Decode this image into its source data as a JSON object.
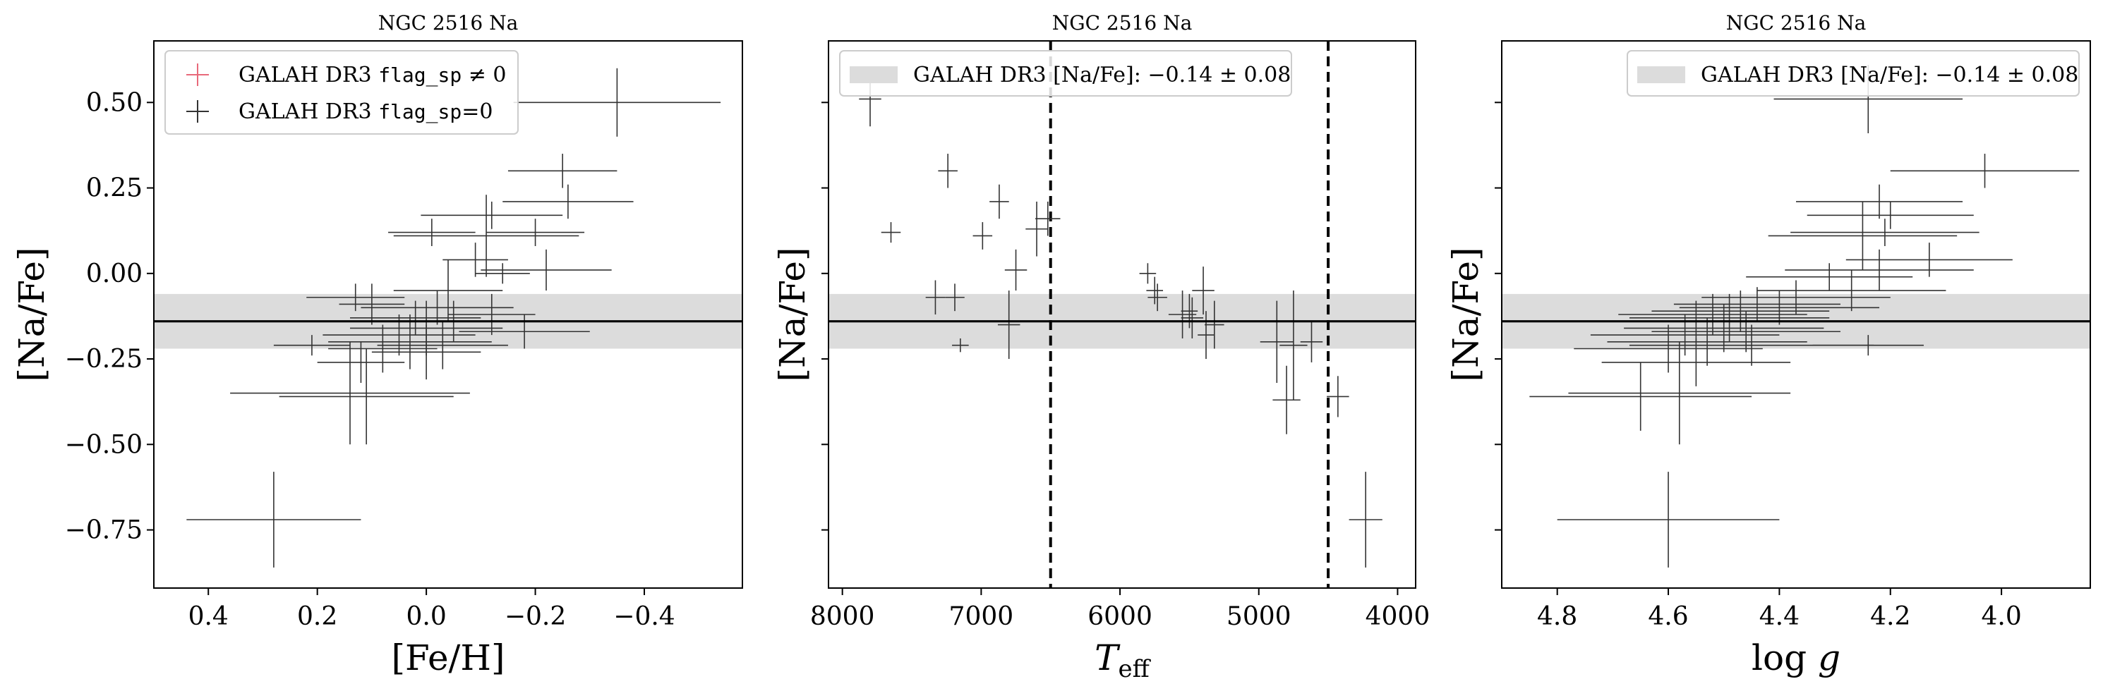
{
  "chart_data": [
    {
      "type": "scatter",
      "title": "NGC 2516 Na",
      "xlabel": "[Fe/H]",
      "ylabel": "[Na/Fe]",
      "xlim": [
        0.5,
        -0.58
      ],
      "ylim": [
        -0.92,
        0.68
      ],
      "xticks": [
        0.4,
        0.2,
        0.0,
        -0.2,
        -0.4
      ],
      "xtick_labels": [
        "0.4",
        "0.2",
        "0.0",
        "−0.2",
        "−0.4"
      ],
      "yticks": [
        0.5,
        0.25,
        0.0,
        -0.25,
        -0.5,
        -0.75
      ],
      "ytick_labels": [
        "0.50",
        "0.25",
        "0.00",
        "−0.25",
        "−0.50",
        "−0.75"
      ],
      "show_ytick_labels": true,
      "band": {
        "center": -0.14,
        "half_width": 0.08,
        "color": "#dcdcdc"
      },
      "hline": -0.14,
      "vlines": [],
      "legend": {
        "placement": "top-left",
        "entries": [
          {
            "label": "GALAH DR3",
            "code": "flag_sp",
            "suffix": "≠ 0",
            "color": "#e8697a"
          },
          {
            "label": "GALAH DR3",
            "code": "flag_sp",
            "suffix": "=0",
            "color": "#333333"
          }
        ]
      },
      "series": [
        {
          "color": "#333333",
          "points": [
            {
              "x": -0.35,
              "y": 0.5,
              "xerr": 0.19,
              "yerr": 0.1
            },
            {
              "x": -0.25,
              "y": 0.3,
              "xerr": 0.1,
              "yerr": 0.05
            },
            {
              "x": -0.26,
              "y": 0.21,
              "xerr": 0.12,
              "yerr": 0.05
            },
            {
              "x": -0.12,
              "y": 0.17,
              "xerr": 0.13,
              "yerr": 0.04
            },
            {
              "x": -0.2,
              "y": 0.12,
              "xerr": 0.09,
              "yerr": 0.04
            },
            {
              "x": -0.11,
              "y": 0.11,
              "xerr": 0.17,
              "yerr": 0.12
            },
            {
              "x": -0.01,
              "y": 0.12,
              "xerr": 0.08,
              "yerr": 0.04
            },
            {
              "x": -0.09,
              "y": 0.04,
              "xerr": 0.06,
              "yerr": 0.05
            },
            {
              "x": -0.22,
              "y": 0.01,
              "xerr": 0.12,
              "yerr": 0.06
            },
            {
              "x": -0.14,
              "y": 0.0,
              "xerr": 0.05,
              "yerr": 0.03
            },
            {
              "x": -0.04,
              "y": -0.05,
              "xerr": 0.1,
              "yerr": 0.09
            },
            {
              "x": 0.13,
              "y": -0.07,
              "xerr": 0.09,
              "yerr": 0.04
            },
            {
              "x": 0.1,
              "y": -0.09,
              "xerr": 0.06,
              "yerr": 0.06
            },
            {
              "x": -0.02,
              "y": -0.1,
              "xerr": 0.14,
              "yerr": 0.05
            },
            {
              "x": -0.12,
              "y": -0.12,
              "xerr": 0.08,
              "yerr": 0.06
            },
            {
              "x": 0.02,
              "y": -0.13,
              "xerr": 0.12,
              "yerr": 0.05
            },
            {
              "x": -0.05,
              "y": -0.14,
              "xerr": 0.17,
              "yerr": 0.06
            },
            {
              "x": 0.0,
              "y": -0.16,
              "xerr": 0.14,
              "yerr": 0.08
            },
            {
              "x": -0.18,
              "y": -0.17,
              "xerr": 0.12,
              "yerr": 0.05
            },
            {
              "x": 0.05,
              "y": -0.18,
              "xerr": 0.14,
              "yerr": 0.06
            },
            {
              "x": 0.03,
              "y": -0.2,
              "xerr": 0.15,
              "yerr": 0.08
            },
            {
              "x": -0.03,
              "y": -0.21,
              "xerr": 0.12,
              "yerr": 0.07
            },
            {
              "x": 0.21,
              "y": -0.21,
              "xerr": 0.07,
              "yerr": 0.03
            },
            {
              "x": 0.08,
              "y": -0.22,
              "xerr": 0.1,
              "yerr": 0.07
            },
            {
              "x": 0.0,
              "y": -0.23,
              "xerr": 0.1,
              "yerr": 0.08
            },
            {
              "x": 0.12,
              "y": -0.26,
              "xerr": 0.08,
              "yerr": 0.06
            },
            {
              "x": 0.11,
              "y": -0.36,
              "xerr": 0.16,
              "yerr": 0.14
            },
            {
              "x": 0.14,
              "y": -0.35,
              "xerr": 0.22,
              "yerr": 0.15
            },
            {
              "x": 0.28,
              "y": -0.72,
              "xerr": 0.16,
              "yerr": 0.14
            }
          ]
        }
      ]
    },
    {
      "type": "scatter",
      "title": "NGC 2516 Na",
      "xlabel": "T_eff",
      "ylabel": "[Na/Fe]",
      "xlim": [
        8100,
        3870
      ],
      "ylim": [
        -0.92,
        0.68
      ],
      "xticks": [
        8000,
        7000,
        6000,
        5000,
        4000
      ],
      "xtick_labels": [
        "8000",
        "7000",
        "6000",
        "5000",
        "4000"
      ],
      "yticks": [
        0.5,
        0.25,
        0.0,
        -0.25,
        -0.5,
        -0.75
      ],
      "ytick_labels": [
        "0.50",
        "0.25",
        "0.00",
        "−0.25",
        "−0.50",
        "−0.75"
      ],
      "show_ytick_labels": false,
      "band": {
        "center": -0.14,
        "half_width": 0.08,
        "color": "#dcdcdc"
      },
      "hline": -0.14,
      "vlines": [
        6500,
        4500
      ],
      "legend": {
        "placement": "top-left",
        "entries": [
          {
            "label": "GALAH DR3 [Na/Fe]:",
            "value": "−0.14 ± 0.08",
            "color": "#dcdcdc"
          }
        ]
      },
      "series": [
        {
          "color": "#333333",
          "points": [
            {
              "x": 7800,
              "y": 0.51,
              "xerr": 80,
              "yerr": 0.08
            },
            {
              "x": 7240,
              "y": 0.3,
              "xerr": 70,
              "yerr": 0.05
            },
            {
              "x": 6870,
              "y": 0.21,
              "xerr": 70,
              "yerr": 0.05
            },
            {
              "x": 7650,
              "y": 0.12,
              "xerr": 70,
              "yerr": 0.03
            },
            {
              "x": 6990,
              "y": 0.11,
              "xerr": 70,
              "yerr": 0.04
            },
            {
              "x": 6600,
              "y": 0.13,
              "xerr": 80,
              "yerr": 0.08
            },
            {
              "x": 6520,
              "y": 0.16,
              "xerr": 90,
              "yerr": 0.05
            },
            {
              "x": 6750,
              "y": 0.01,
              "xerr": 80,
              "yerr": 0.06
            },
            {
              "x": 7330,
              "y": -0.07,
              "xerr": 70,
              "yerr": 0.05
            },
            {
              "x": 7190,
              "y": -0.07,
              "xerr": 70,
              "yerr": 0.04
            },
            {
              "x": 6800,
              "y": -0.15,
              "xerr": 80,
              "yerr": 0.1
            },
            {
              "x": 7150,
              "y": -0.21,
              "xerr": 60,
              "yerr": 0.02
            },
            {
              "x": 5800,
              "y": 0.0,
              "xerr": 60,
              "yerr": 0.03
            },
            {
              "x": 5750,
              "y": -0.05,
              "xerr": 60,
              "yerr": 0.04
            },
            {
              "x": 5730,
              "y": -0.07,
              "xerr": 70,
              "yerr": 0.04
            },
            {
              "x": 5550,
              "y": -0.12,
              "xerr": 100,
              "yerr": 0.07
            },
            {
              "x": 5480,
              "y": -0.13,
              "xerr": 80,
              "yerr": 0.06
            },
            {
              "x": 5400,
              "y": -0.05,
              "xerr": 80,
              "yerr": 0.07
            },
            {
              "x": 5380,
              "y": -0.18,
              "xerr": 60,
              "yerr": 0.07
            },
            {
              "x": 5320,
              "y": -0.15,
              "xerr": 70,
              "yerr": 0.07
            },
            {
              "x": 5500,
              "y": -0.11,
              "xerr": 60,
              "yerr": 0.05
            },
            {
              "x": 4870,
              "y": -0.2,
              "xerr": 120,
              "yerr": 0.12
            },
            {
              "x": 4750,
              "y": -0.21,
              "xerr": 100,
              "yerr": 0.16
            },
            {
              "x": 4620,
              "y": -0.2,
              "xerr": 80,
              "yerr": 0.06
            },
            {
              "x": 4800,
              "y": -0.37,
              "xerr": 100,
              "yerr": 0.1
            },
            {
              "x": 4430,
              "y": -0.36,
              "xerr": 80,
              "yerr": 0.06
            },
            {
              "x": 4230,
              "y": -0.72,
              "xerr": 120,
              "yerr": 0.14
            }
          ]
        }
      ]
    },
    {
      "type": "scatter",
      "title": "NGC 2516 Na",
      "xlabel": "log g",
      "ylabel": "[Na/Fe]",
      "xlim": [
        4.9,
        3.84
      ],
      "ylim": [
        -0.92,
        0.68
      ],
      "xticks": [
        4.8,
        4.6,
        4.4,
        4.2,
        4.0
      ],
      "xtick_labels": [
        "4.8",
        "4.6",
        "4.4",
        "4.2",
        "4.0"
      ],
      "yticks": [
        0.5,
        0.25,
        0.0,
        -0.25,
        -0.5,
        -0.75
      ],
      "ytick_labels": [
        "0.50",
        "0.25",
        "0.00",
        "−0.25",
        "−0.50",
        "−0.75"
      ],
      "show_ytick_labels": false,
      "band": {
        "center": -0.14,
        "half_width": 0.08,
        "color": "#dcdcdc"
      },
      "hline": -0.14,
      "vlines": [],
      "legend": {
        "placement": "top-right",
        "entries": [
          {
            "label": "GALAH DR3 [Na/Fe]:",
            "value": "−0.14 ± 0.08",
            "color": "#dcdcdc"
          }
        ]
      },
      "series": [
        {
          "color": "#333333",
          "points": [
            {
              "x": 4.24,
              "y": 0.51,
              "xerr": 0.17,
              "yerr": 0.1
            },
            {
              "x": 4.03,
              "y": 0.3,
              "xerr": 0.17,
              "yerr": 0.05
            },
            {
              "x": 4.22,
              "y": 0.21,
              "xerr": 0.15,
              "yerr": 0.05
            },
            {
              "x": 4.2,
              "y": 0.17,
              "xerr": 0.15,
              "yerr": 0.04
            },
            {
              "x": 4.21,
              "y": 0.12,
              "xerr": 0.17,
              "yerr": 0.04
            },
            {
              "x": 4.25,
              "y": 0.11,
              "xerr": 0.17,
              "yerr": 0.1
            },
            {
              "x": 4.13,
              "y": 0.04,
              "xerr": 0.15,
              "yerr": 0.05
            },
            {
              "x": 4.22,
              "y": 0.01,
              "xerr": 0.17,
              "yerr": 0.06
            },
            {
              "x": 4.31,
              "y": -0.01,
              "xerr": 0.15,
              "yerr": 0.04
            },
            {
              "x": 4.27,
              "y": -0.05,
              "xerr": 0.17,
              "yerr": 0.06
            },
            {
              "x": 4.37,
              "y": -0.07,
              "xerr": 0.17,
              "yerr": 0.05
            },
            {
              "x": 4.44,
              "y": -0.09,
              "xerr": 0.15,
              "yerr": 0.05
            },
            {
              "x": 4.4,
              "y": -0.1,
              "xerr": 0.18,
              "yerr": 0.05
            },
            {
              "x": 4.47,
              "y": -0.11,
              "xerr": 0.16,
              "yerr": 0.06
            },
            {
              "x": 4.52,
              "y": -0.12,
              "xerr": 0.17,
              "yerr": 0.06
            },
            {
              "x": 4.49,
              "y": -0.13,
              "xerr": 0.18,
              "yerr": 0.07
            },
            {
              "x": 4.55,
              "y": -0.14,
              "xerr": 0.17,
              "yerr": 0.06
            },
            {
              "x": 4.5,
              "y": -0.16,
              "xerr": 0.18,
              "yerr": 0.07
            },
            {
              "x": 4.46,
              "y": -0.17,
              "xerr": 0.17,
              "yerr": 0.06
            },
            {
              "x": 4.57,
              "y": -0.18,
              "xerr": 0.17,
              "yerr": 0.06
            },
            {
              "x": 4.53,
              "y": -0.2,
              "xerr": 0.18,
              "yerr": 0.07
            },
            {
              "x": 4.45,
              "y": -0.21,
              "xerr": 0.22,
              "yerr": 0.06
            },
            {
              "x": 4.24,
              "y": -0.21,
              "xerr": 0.1,
              "yerr": 0.03
            },
            {
              "x": 4.6,
              "y": -0.22,
              "xerr": 0.17,
              "yerr": 0.07
            },
            {
              "x": 4.55,
              "y": -0.26,
              "xerr": 0.17,
              "yerr": 0.07
            },
            {
              "x": 4.58,
              "y": -0.35,
              "xerr": 0.2,
              "yerr": 0.15
            },
            {
              "x": 4.65,
              "y": -0.36,
              "xerr": 0.2,
              "yerr": 0.1
            },
            {
              "x": 4.6,
              "y": -0.72,
              "xerr": 0.2,
              "yerr": 0.14
            }
          ]
        }
      ]
    }
  ]
}
